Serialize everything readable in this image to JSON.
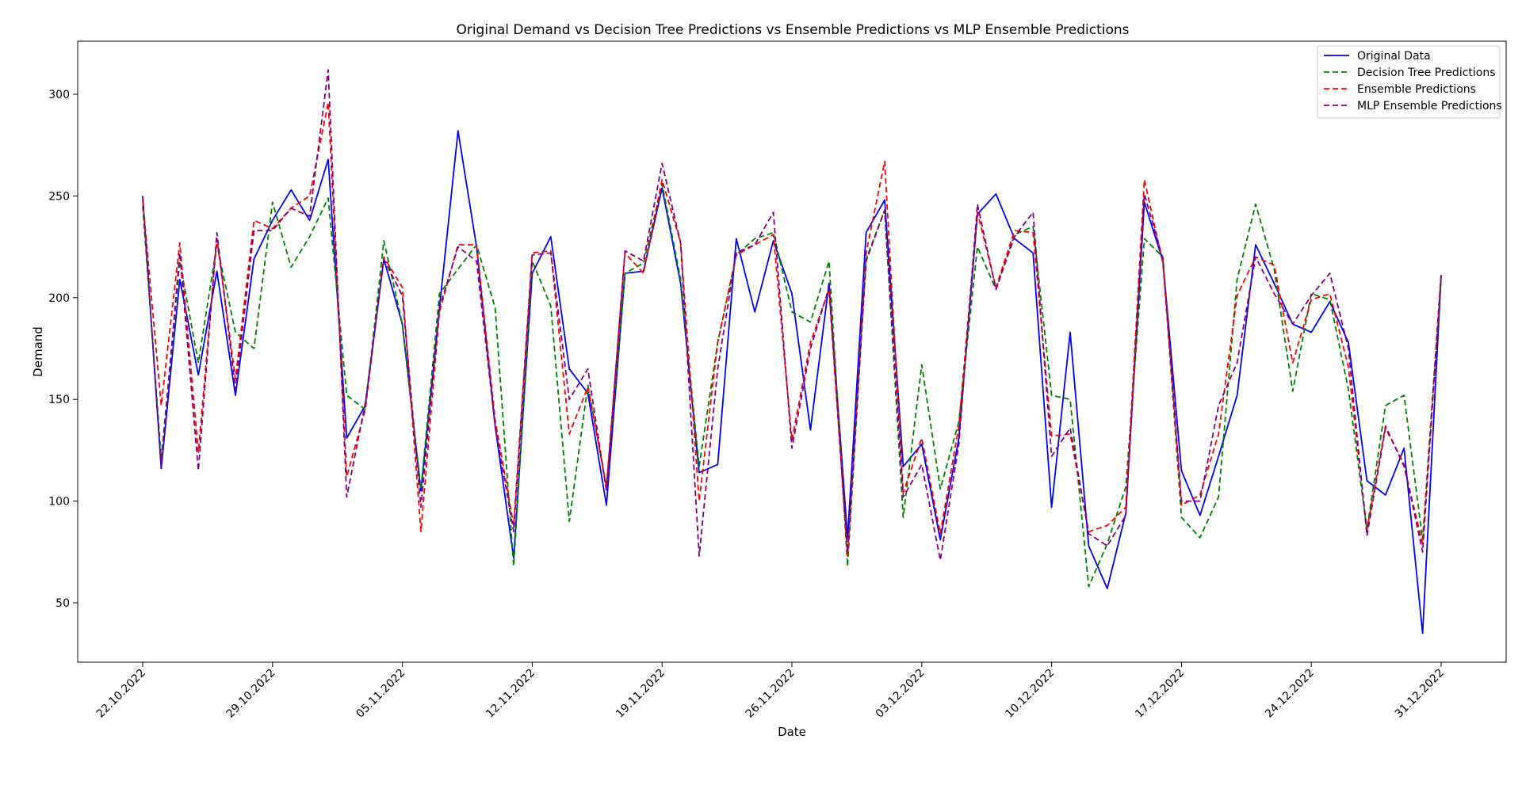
{
  "chart_data": {
    "type": "line",
    "title": "Original Demand vs Decision Tree Predictions vs Ensemble Predictions vs MLP Ensemble Predictions",
    "xlabel": "Date",
    "ylabel": "Demand",
    "x_tick_labels": [
      "22.10.2022",
      "29.10.2022",
      "05.11.2022",
      "12.11.2022",
      "19.11.2022",
      "26.11.2022",
      "03.12.2022",
      "10.12.2022",
      "17.12.2022",
      "24.12.2022",
      "31.12.2022"
    ],
    "x_start": "22.10.2022",
    "x_step": "1 day",
    "x_range": [
      "22.10.2022",
      "31.12.2022"
    ],
    "y_ticks": [
      50,
      100,
      150,
      200,
      250,
      300
    ],
    "ylim": [
      20,
      326
    ],
    "grid": false,
    "legend_position": "upper right",
    "series": [
      {
        "name": "Original Data",
        "color": "#0000ff",
        "style": "solid",
        "values": [
          250,
          116,
          209,
          162,
          213,
          152,
          219,
          238,
          253,
          238,
          268,
          131,
          147,
          219,
          187,
          105,
          195,
          282,
          225,
          137,
          72,
          212,
          230,
          165,
          153,
          98,
          212,
          213,
          254,
          207,
          114,
          118,
          229,
          193,
          228,
          202,
          135,
          207,
          82,
          232,
          248,
          117,
          128,
          81,
          131,
          241,
          251,
          229,
          222,
          97,
          183,
          78,
          57,
          94,
          247,
          218,
          115,
          93,
          122,
          152,
          226,
          207,
          187,
          183,
          198,
          178,
          110,
          103,
          126,
          35,
          211
        ]
      },
      {
        "name": "Decision Tree Predictions",
        "color": "#008000",
        "style": "dashed",
        "values": [
          245,
          121,
          218,
          168,
          226,
          183,
          175,
          247,
          215,
          230,
          249,
          152,
          145,
          228,
          187,
          106,
          202,
          214,
          226,
          195,
          68,
          218,
          196,
          90,
          157,
          107,
          212,
          217,
          256,
          209,
          117,
          178,
          221,
          229,
          232,
          193,
          188,
          218,
          68,
          219,
          243,
          92,
          167,
          106,
          139,
          225,
          204,
          231,
          235,
          152,
          150,
          58,
          79,
          107,
          229,
          220,
          92,
          82,
          102,
          209,
          246,
          214,
          154,
          202,
          199,
          155,
          86,
          147,
          152,
          81,
          212
        ]
      },
      {
        "name": "Ensemble Predictions",
        "color": "#ff0000",
        "style": "dashed",
        "values": [
          248,
          147,
          227,
          124,
          229,
          160,
          238,
          234,
          244,
          250,
          296,
          112,
          145,
          220,
          205,
          85,
          193,
          226,
          226,
          140,
          88,
          222,
          223,
          133,
          156,
          107,
          222,
          212,
          258,
          227,
          100,
          178,
          221,
          226,
          231,
          130,
          178,
          204,
          73,
          222,
          267,
          104,
          131,
          84,
          137,
          242,
          205,
          233,
          232,
          132,
          133,
          85,
          88,
          97,
          258,
          217,
          98,
          103,
          133,
          201,
          220,
          216,
          168,
          199,
          202,
          166,
          86,
          137,
          117,
          79,
          210
        ]
      },
      {
        "name": "MLP Ensemble Predictions",
        "color": "#800080",
        "style": "dashed",
        "values": [
          250,
          117,
          222,
          115,
          232,
          155,
          233,
          233,
          244,
          240,
          312,
          102,
          148,
          219,
          201,
          97,
          195,
          225,
          218,
          137,
          85,
          221,
          222,
          150,
          165,
          105,
          223,
          218,
          266,
          227,
          73,
          165,
          222,
          226,
          242,
          126,
          175,
          205,
          75,
          218,
          243,
          102,
          118,
          71,
          128,
          246,
          204,
          230,
          242,
          122,
          136,
          84,
          78,
          93,
          251,
          219,
          100,
          100,
          147,
          168,
          220,
          202,
          187,
          201,
          212,
          175,
          83,
          136,
          118,
          75,
          211
        ]
      }
    ]
  }
}
